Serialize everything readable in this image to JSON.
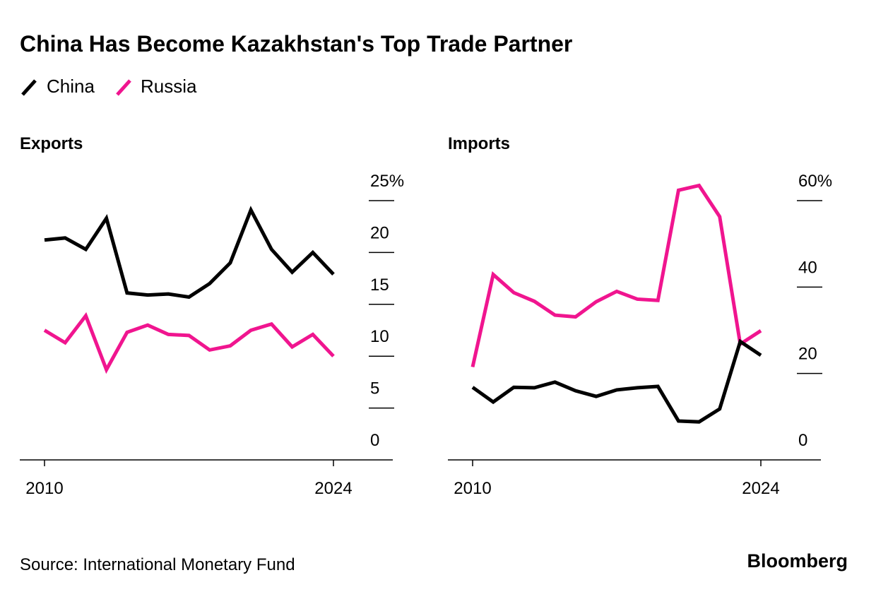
{
  "title": "China Has Become Kazakhstan's Top Trade Partner",
  "source": "Source: International Monetary Fund",
  "brand": "Bloomberg",
  "chart_data": [
    {
      "type": "line",
      "title": "Exports",
      "x": [
        2010,
        2011,
        2012,
        2013,
        2014,
        2015,
        2016,
        2017,
        2018,
        2019,
        2020,
        2021,
        2022,
        2023,
        2024
      ],
      "xticks": [
        2010,
        2024
      ],
      "ylim": [
        0,
        25
      ],
      "yticks": [
        0,
        5,
        10,
        15,
        20,
        {
          "value": 25,
          "label": "25%"
        }
      ],
      "series": [
        {
          "name": "China",
          "color": "#000000",
          "values": [
            21.2,
            21.4,
            20.3,
            23.3,
            16.1,
            15.9,
            16.0,
            15.7,
            17.0,
            19.0,
            24.1,
            20.3,
            18.1,
            20.0,
            17.9
          ]
        },
        {
          "name": "Russia",
          "color": "#f0158f",
          "values": [
            12.5,
            11.3,
            13.9,
            8.7,
            12.3,
            13.0,
            12.1,
            12.0,
            10.6,
            11.0,
            12.5,
            13.1,
            10.9,
            12.1,
            10.0
          ]
        }
      ]
    },
    {
      "type": "line",
      "title": "Imports",
      "x": [
        2010,
        2011,
        2012,
        2013,
        2014,
        2015,
        2016,
        2017,
        2018,
        2019,
        2020,
        2021,
        2022,
        2023,
        2024
      ],
      "xticks": [
        2010,
        2024
      ],
      "ylim": [
        0,
        65
      ],
      "yticks": [
        0,
        20,
        40,
        {
          "value": 60,
          "label": "60%"
        }
      ],
      "series": [
        {
          "name": "China",
          "color": "#000000",
          "values": [
            16.8,
            13.4,
            16.8,
            16.7,
            18.0,
            16.0,
            14.7,
            16.2,
            16.7,
            17.0,
            9.0,
            8.8,
            11.8,
            27.4,
            24.2
          ]
        },
        {
          "name": "Russia",
          "color": "#f0158f",
          "values": [
            21.5,
            42.9,
            38.7,
            36.7,
            33.5,
            33.1,
            36.6,
            39.0,
            37.2,
            36.9,
            62.4,
            63.5,
            56.3,
            26.8,
            29.9
          ]
        }
      ]
    }
  ]
}
